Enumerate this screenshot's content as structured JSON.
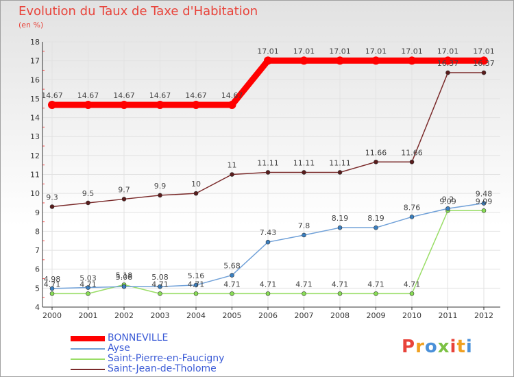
{
  "header": {
    "title": "Evolution du Taux de Taxe d'Habitation",
    "subtitle": "(en %)"
  },
  "brand": {
    "text": "Proxiti",
    "colors": [
      "#e8433a",
      "#f0a020",
      "#4a90d9",
      "#7cc144",
      "#e8433a",
      "#f0a020",
      "#4a90d9"
    ]
  },
  "chart_data": {
    "type": "line",
    "x": [
      "2000",
      "2001",
      "2002",
      "2003",
      "2004",
      "2005",
      "2006",
      "2007",
      "2008",
      "2009",
      "2010",
      "2011",
      "2012"
    ],
    "ylim": [
      4,
      18
    ],
    "yticks": [
      4,
      5,
      6,
      7,
      8,
      9,
      10,
      11,
      12,
      13,
      14,
      15,
      16,
      17,
      18
    ],
    "grid": true,
    "legend_position": "bottom-left",
    "series": [
      {
        "name": "BONNEVILLE",
        "color": "#ff0000",
        "values": [
          14.67,
          14.67,
          14.67,
          14.67,
          14.67,
          14.67,
          17.01,
          17.01,
          17.01,
          17.01,
          17.01,
          17.01,
          17.01
        ],
        "labels": [
          "14.67",
          "14.67",
          "14.67",
          "14.67",
          "14.67",
          "14.67",
          "17.01",
          "17.01",
          "17.01",
          "17.01",
          "17.01",
          "17.01",
          "17.01"
        ]
      },
      {
        "name": "Ayse",
        "color": "#6fa0d8",
        "values": [
          4.98,
          5.03,
          5.08,
          5.08,
          5.16,
          5.68,
          7.43,
          7.8,
          8.19,
          8.19,
          8.76,
          9.2,
          9.48
        ],
        "labels": [
          "4.98",
          "5.03",
          "5.08",
          "5.08",
          "5.16",
          "5.68",
          "7.43",
          "7.8",
          "8.19",
          "8.19",
          "8.76",
          "9.2",
          "9.48"
        ]
      },
      {
        "name": "Saint-Pierre-en-Faucigny",
        "color": "#99dd66",
        "values": [
          4.71,
          4.71,
          5.18,
          4.71,
          4.71,
          4.71,
          4.71,
          4.71,
          4.71,
          4.71,
          4.71,
          9.09,
          9.09
        ],
        "labels": [
          "4.71",
          "4.71",
          "5.18",
          "4.71",
          "4.71",
          "4.71",
          "4.71",
          "4.71",
          "4.71",
          "4.71",
          "4.71",
          "9.09",
          "9.09"
        ]
      },
      {
        "name": "Saint-Jean-de-Tholome",
        "color": "#7a2a2a",
        "values": [
          9.3,
          9.5,
          9.7,
          9.9,
          10,
          11,
          11.11,
          11.11,
          11.11,
          11.66,
          11.66,
          16.37,
          16.37
        ],
        "labels": [
          "9.3",
          "9.5",
          "9.7",
          "9.9",
          "10",
          "11",
          "11.11",
          "11.11",
          "11.11",
          "11.66",
          "11.66",
          "16.37",
          "16.37"
        ]
      }
    ]
  }
}
